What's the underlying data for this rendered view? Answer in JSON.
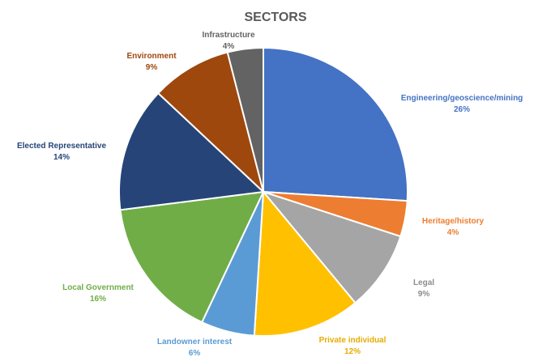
{
  "chart_data": {
    "type": "pie",
    "title": "SECTORS",
    "legend": "none",
    "slices": [
      {
        "label": "Engineering/geoscience/mining",
        "value": 26,
        "value_label": "26%",
        "color": "#4472C4"
      },
      {
        "label": "Heritage/history",
        "value": 4,
        "value_label": "4%",
        "color": "#ED7D31"
      },
      {
        "label": "Legal",
        "value": 9,
        "value_label": "9%",
        "color": "#A5A5A5"
      },
      {
        "label": "Private individual",
        "value": 12,
        "value_label": "12%",
        "color": "#FFC000"
      },
      {
        "label": "Landowner interest",
        "value": 6,
        "value_label": "6%",
        "color": "#5B9BD5"
      },
      {
        "label": "Local Government",
        "value": 16,
        "value_label": "16%",
        "color": "#70AD47"
      },
      {
        "label": "Elected Representative",
        "value": 14,
        "value_label": "14%",
        "color": "#264478"
      },
      {
        "label": "Environment",
        "value": 9,
        "value_label": "9%",
        "color": "#9E480E"
      },
      {
        "label": "Infrastructure",
        "value": 4,
        "value_label": "4%",
        "color": "#636363"
      }
    ]
  }
}
